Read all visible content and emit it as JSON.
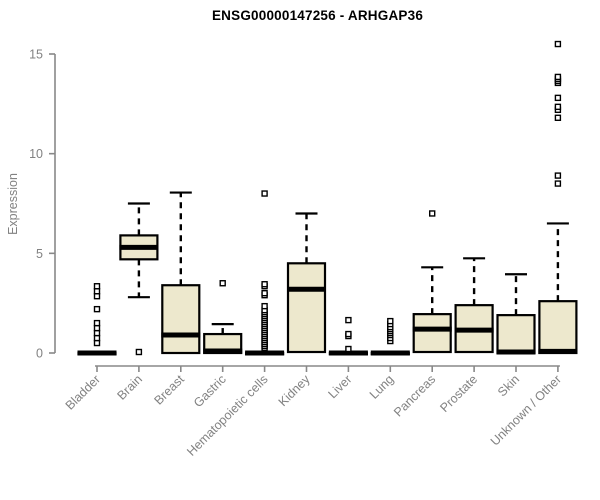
{
  "chart_data": {
    "type": "boxplot",
    "title": "ENSG00000147256 - ARHGAP36",
    "ylabel": "Expression",
    "xlabel": "",
    "ylim": [
      0,
      15.6
    ],
    "yticks": [
      0,
      5,
      10,
      15
    ],
    "grid": false,
    "legend": "none",
    "categories": [
      "Bladder",
      "Brain",
      "Breast",
      "Gastric",
      "Hematopoietic cells",
      "Kidney",
      "Liver",
      "Lung",
      "Pancreas",
      "Prostate",
      "Skin",
      "Unknown / Other"
    ],
    "boxes": [
      {
        "category": "Bladder",
        "q1": 0,
        "median": 0,
        "q3": 0,
        "whisker_low": 0,
        "whisker_high": 0,
        "outliers": [
          0.5,
          0.75,
          1.0,
          1.25,
          1.5,
          2.2,
          2.85,
          3.1,
          3.35
        ]
      },
      {
        "category": "Brain",
        "q1": 4.7,
        "median": 5.3,
        "q3": 5.9,
        "whisker_low": 2.8,
        "whisker_high": 7.5,
        "outliers": [
          0.05
        ]
      },
      {
        "category": "Breast",
        "q1": 0,
        "median": 0.9,
        "q3": 3.4,
        "whisker_low": 0,
        "whisker_high": 8.05,
        "outliers": []
      },
      {
        "category": "Gastric",
        "q1": 0,
        "median": 0.1,
        "q3": 0.95,
        "whisker_low": 0,
        "whisker_high": 1.45,
        "outliers": [
          3.5
        ]
      },
      {
        "category": "Hematopoietic cells",
        "q1": 0,
        "median": 0,
        "q3": 0,
        "whisker_low": 0,
        "whisker_high": 0,
        "outliers": [
          0.25,
          0.35,
          0.45,
          0.55,
          0.65,
          0.75,
          0.85,
          0.95,
          1.05,
          1.15,
          1.25,
          1.35,
          1.45,
          1.55,
          1.65,
          1.75,
          1.85,
          1.95,
          2.05,
          2.15,
          2.35,
          2.9,
          3.0,
          3.35,
          3.45,
          8.0
        ]
      },
      {
        "category": "Kidney",
        "q1": 0.05,
        "median": 3.2,
        "q3": 4.5,
        "whisker_low": 0.05,
        "whisker_high": 7.0,
        "outliers": []
      },
      {
        "category": "Liver",
        "q1": 0,
        "median": 0,
        "q3": 0,
        "whisker_low": 0,
        "whisker_high": 0,
        "outliers": [
          0.2,
          0.85,
          0.95,
          1.65
        ]
      },
      {
        "category": "Lung",
        "q1": 0,
        "median": 0,
        "q3": 0,
        "whisker_low": 0,
        "whisker_high": 0,
        "outliers": [
          0.6,
          0.75,
          0.9,
          1.0,
          1.1,
          1.2,
          1.3,
          1.45,
          1.6
        ]
      },
      {
        "category": "Pancreas",
        "q1": 0.05,
        "median": 1.2,
        "q3": 1.95,
        "whisker_low": 0.05,
        "whisker_high": 4.3,
        "outliers": [
          7.0
        ]
      },
      {
        "category": "Prostate",
        "q1": 0.05,
        "median": 1.15,
        "q3": 2.4,
        "whisker_low": 0.05,
        "whisker_high": 4.75,
        "outliers": []
      },
      {
        "category": "Skin",
        "q1": 0,
        "median": 0.05,
        "q3": 1.9,
        "whisker_low": 0,
        "whisker_high": 3.95,
        "outliers": []
      },
      {
        "category": "Unknown / Other",
        "q1": 0,
        "median": 0.08,
        "q3": 2.6,
        "whisker_low": 0,
        "whisker_high": 6.5,
        "outliers": [
          8.5,
          8.9,
          11.8,
          12.2,
          12.35,
          12.8,
          13.55,
          13.65,
          13.75,
          13.85,
          15.5
        ]
      }
    ],
    "style": {
      "box_fill": "#EDE8CD",
      "box_stroke": "#000000",
      "median_color": "#000000",
      "whisker_color": "#000000",
      "outlier_fill": "#ffffff",
      "outlier_stroke": "#000000",
      "axis_color": "#888888",
      "tick_label_color": "#828282",
      "title_color": "#000000"
    }
  }
}
